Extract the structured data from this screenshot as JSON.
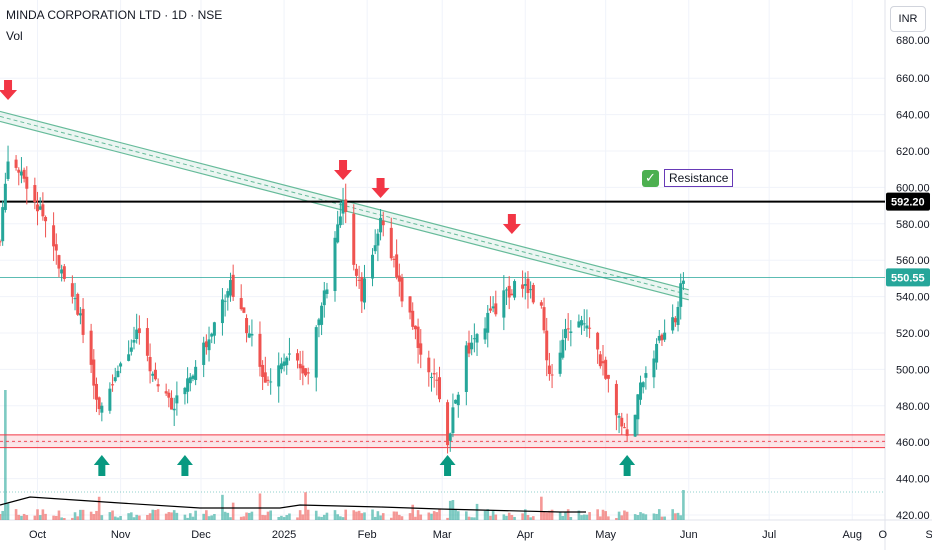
{
  "header": {
    "title": "MINDA CORPORATION LTD · 1D · NSE",
    "volume_label": "Vol",
    "currency": "INR"
  },
  "annotation": {
    "resistance_label": "Resistance"
  },
  "colors": {
    "up": "#26a69a",
    "down": "#ef5350",
    "arrow_down": "#f23645",
    "arrow_up": "#089981",
    "trend": "#66bb9a",
    "support_zone": "#f23645",
    "resistance_line": "#000000"
  },
  "chart_data": {
    "type": "candlestick",
    "title": "MINDA CORPORATION LTD · 1D · NSE",
    "ylim": [
      420,
      670
    ],
    "y_ticks": [
      "420.00",
      "440.00",
      "460.00",
      "480.00",
      "500.00",
      "520.00",
      "540.00",
      "560.00",
      "580.00",
      "600.00",
      "620.00",
      "640.00",
      "660.00"
    ],
    "x_ticks": [
      "Oct",
      "Nov",
      "Dec",
      "2025",
      "Feb",
      "Mar",
      "Apr",
      "May",
      "Jun",
      "Jul",
      "Aug",
      "Sep",
      "O"
    ],
    "current_price": "550.55",
    "resistance_price": "592.20",
    "support_zone": [
      457,
      464
    ],
    "trendline": {
      "from": [
        "2024-09-17",
        639
      ],
      "to": [
        "2025-06-01",
        541
      ]
    },
    "sell_arrows": [
      "2024-09-20",
      "2025-01-23",
      "2025-02-06",
      "2025-03-27"
    ],
    "buy_arrows": [
      "2024-10-25",
      "2024-11-25",
      "2025-03-03",
      "2025-05-09"
    ],
    "price_path": [
      [
        "2024-09-17",
        570
      ],
      [
        "2024-09-20",
        618
      ],
      [
        "2024-09-27",
        600
      ],
      [
        "2024-10-03",
        585
      ],
      [
        "2024-10-10",
        555
      ],
      [
        "2024-10-17",
        530
      ],
      [
        "2024-10-24",
        475
      ],
      [
        "2024-10-31",
        500
      ],
      [
        "2024-11-07",
        520
      ],
      [
        "2024-11-14",
        495
      ],
      [
        "2024-11-21",
        480
      ],
      [
        "2024-11-28",
        500
      ],
      [
        "2024-12-05",
        520
      ],
      [
        "2024-12-12",
        548
      ],
      [
        "2024-12-19",
        520
      ],
      [
        "2024-12-26",
        490
      ],
      [
        "2025-01-02",
        510
      ],
      [
        "2025-01-09",
        495
      ],
      [
        "2025-01-16",
        540
      ],
      [
        "2025-01-23",
        590
      ],
      [
        "2025-01-30",
        540
      ],
      [
        "2025-02-06",
        585
      ],
      [
        "2025-02-13",
        545
      ],
      [
        "2025-02-20",
        515
      ],
      [
        "2025-02-27",
        490
      ],
      [
        "2025-03-03",
        462
      ],
      [
        "2025-03-10",
        510
      ],
      [
        "2025-03-17",
        525
      ],
      [
        "2025-03-24",
        540
      ],
      [
        "2025-03-31",
        548
      ],
      [
        "2025-04-07",
        535
      ],
      [
        "2025-04-10",
        495
      ],
      [
        "2025-04-17",
        522
      ],
      [
        "2025-04-24",
        528
      ],
      [
        "2025-05-01",
        495
      ],
      [
        "2025-05-09",
        462
      ],
      [
        "2025-05-16",
        500
      ],
      [
        "2025-05-23",
        520
      ],
      [
        "2025-05-27",
        527
      ],
      [
        "2025-05-30",
        552
      ]
    ]
  }
}
